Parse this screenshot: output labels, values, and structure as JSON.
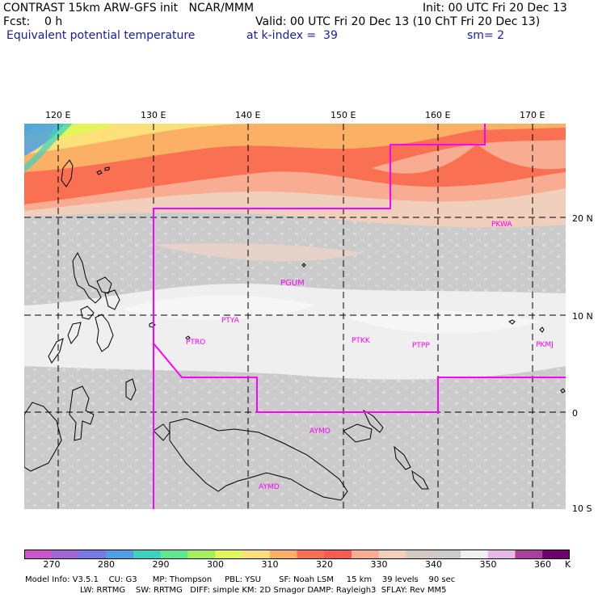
{
  "header": {
    "title_left": "CONTRAST 15km ARW-GFS init   NCAR/MMM",
    "init": "Init: 00 UTC Fri 20 Dec 13",
    "fcst": "Fcst:    0 h",
    "valid": "Valid: 00 UTC Fri 20 Dec 13 (10 ChT Fri 20 Dec 13)",
    "field": "Equivalent potential temperature",
    "level": "at k-index =  39",
    "smoothing": "sm= 2"
  },
  "map": {
    "lon_labels": [
      "120 E",
      "130 E",
      "140 E",
      "150 E",
      "160 E",
      "170 E"
    ],
    "lat_labels": [
      "20 N",
      "10 N",
      "0",
      "10 S"
    ],
    "stations": [
      "PGUM",
      "PTYA",
      "PTRO",
      "PTKK",
      "PTPP",
      "PKMJ",
      "PKWA",
      "AYMO",
      "AYMD"
    ],
    "border_color": "#ff00ff"
  },
  "colorbar": {
    "ticks": [
      "270",
      "280",
      "290",
      "300",
      "310",
      "320",
      "330",
      "340",
      "350",
      "360"
    ],
    "unit": "K",
    "colors": [
      "#cc55cc",
      "#a066d8",
      "#7878e8",
      "#4e9ee8",
      "#3cd2c0",
      "#5ee890",
      "#a6ee5a",
      "#e2f55a",
      "#fde07a",
      "#fcb066",
      "#f97052",
      "#f85c50",
      "#f8ac92",
      "#f0d0bc",
      "#d6c8c2",
      "#cbcbcb",
      "#f0f0f0",
      "#e6b8e6",
      "#a8409c",
      "#700070"
    ]
  },
  "model_info": {
    "line1": "Model Info: V3.5.1    CU: G3      MP: Thompson     PBL: YSU       SF: Noah LSM     15 km    39 levels    90 sec",
    "line2": "LW: RRTMG    SW: RRTMG   DIFF: simple KM: 2D Smagor DAMP: Rayleigh3  SFLAY: Rev MM5"
  }
}
